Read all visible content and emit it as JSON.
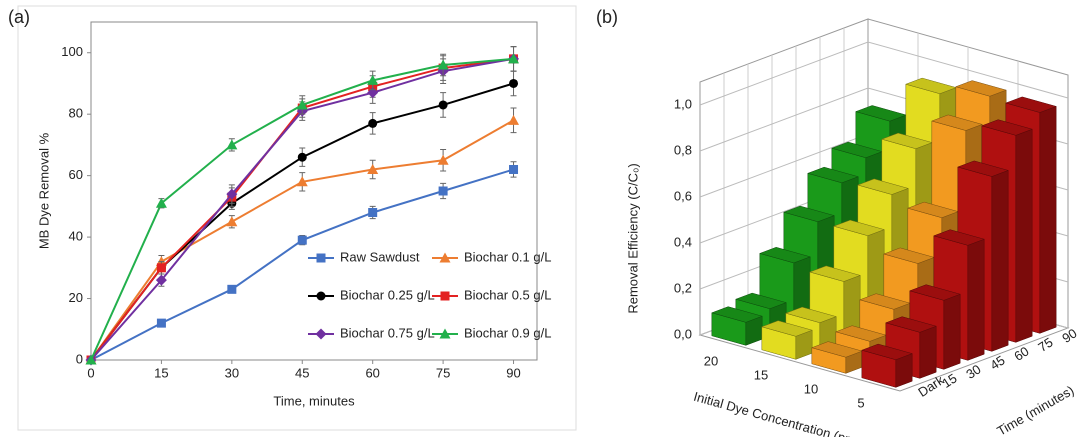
{
  "chart_data": [
    {
      "type": "line",
      "panel_label": "(a)",
      "x_label": "Time, minutes",
      "y_label": "MB Dye Removal %",
      "x": [
        0,
        15,
        30,
        45,
        60,
        75,
        90
      ],
      "xlim": [
        0,
        95
      ],
      "xticks": [
        0,
        15,
        30,
        45,
        60,
        75,
        90
      ],
      "ylim": [
        0,
        110
      ],
      "yticks": [
        0,
        20,
        40,
        60,
        80,
        100
      ],
      "legend_position": "lower right",
      "series": [
        {
          "name": "Raw Sawdust",
          "color": "#4472c4",
          "marker": "square",
          "values": [
            0,
            12,
            23,
            39,
            48,
            55,
            62
          ],
          "errors": [
            0,
            1,
            1,
            1.5,
            2,
            2.5,
            2.5
          ]
        },
        {
          "name": "Biochar 0.1 g/L",
          "color": "#ed7d31",
          "marker": "triangle",
          "values": [
            0,
            32,
            45,
            58,
            62,
            65,
            78
          ],
          "errors": [
            0,
            2,
            2,
            3,
            3,
            3.5,
            4
          ]
        },
        {
          "name": "Biochar 0.25 g/L",
          "color": "#000000",
          "marker": "circle",
          "values": [
            0,
            30,
            51,
            66,
            77,
            83,
            90
          ],
          "errors": [
            0,
            2,
            2,
            3,
            3.5,
            4,
            4
          ]
        },
        {
          "name": "Biochar 0.5 g/L",
          "color": "#e32222",
          "marker": "square",
          "values": [
            0,
            30,
            53,
            82,
            89,
            95,
            98
          ],
          "errors": [
            0,
            2,
            3,
            3,
            3.5,
            4,
            4
          ]
        },
        {
          "name": "Biochar 0.75 g/L",
          "color": "#7030a0",
          "marker": "diamond",
          "values": [
            0,
            26,
            54,
            81,
            87,
            94,
            98
          ],
          "errors": [
            0,
            2,
            3,
            3,
            3.5,
            4,
            4
          ]
        },
        {
          "name": "Biochar 0.9 g/L",
          "color": "#22b04c",
          "marker": "triangle",
          "values": [
            0,
            51,
            70,
            83,
            91,
            96,
            98
          ],
          "errors": [
            0,
            1.5,
            2,
            3,
            3,
            3.5,
            4
          ]
        }
      ]
    },
    {
      "type": "bar3d",
      "panel_label": "(b)",
      "z_label": "Removal Efficiency (C/C₀)",
      "x_label": "Initial Dye Concentration (ppm)",
      "y_label": "Time (minutes)",
      "times": [
        "Dark",
        "15",
        "30",
        "45",
        "60",
        "75",
        "90"
      ],
      "zlim": [
        0,
        1.1
      ],
      "zticks": [
        {
          "value": 0,
          "label": "0,0"
        },
        {
          "value": 0.2,
          "label": "0,2"
        },
        {
          "value": 0.4,
          "label": "0,4"
        },
        {
          "value": 0.6,
          "label": "0,6"
        },
        {
          "value": 0.8,
          "label": "0,8"
        },
        {
          "value": 1,
          "label": "1,0"
        }
      ],
      "series": [
        {
          "name": "20",
          "color": "#1a9a1a",
          "values": [
            0.1,
            0.12,
            0.28,
            0.42,
            0.55,
            0.62,
            0.74
          ]
        },
        {
          "name": "15",
          "color": "#e2dc20",
          "values": [
            0.1,
            0.12,
            0.26,
            0.42,
            0.56,
            0.72,
            0.92
          ]
        },
        {
          "name": "10",
          "color": "#f29a20",
          "values": [
            0.07,
            0.1,
            0.2,
            0.36,
            0.52,
            0.86,
            0.97
          ]
        },
        {
          "name": "5",
          "color": "#b01010",
          "values": [
            0.12,
            0.2,
            0.3,
            0.5,
            0.76,
            0.9,
            0.96
          ]
        }
      ]
    }
  ]
}
